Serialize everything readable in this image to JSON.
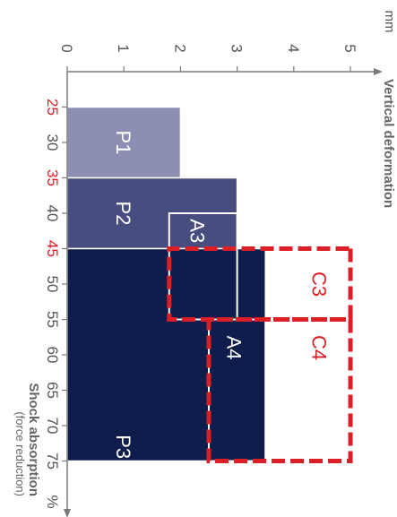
{
  "chart_data": {
    "type": "area",
    "orientation": "rotated-90-clockwise",
    "x_axis": {
      "label": "Shock absorption",
      "sublabel": "(force reduction)",
      "unit": "%",
      "range": [
        20,
        80
      ],
      "ticks": [
        {
          "value": 25,
          "label": "25",
          "highlight": true
        },
        {
          "value": 30,
          "label": "30",
          "highlight": false
        },
        {
          "value": 35,
          "label": "35",
          "highlight": true
        },
        {
          "value": 40,
          "label": "40",
          "highlight": false
        },
        {
          "value": 45,
          "label": "45",
          "highlight": true
        },
        {
          "value": 50,
          "label": "50",
          "highlight": false
        },
        {
          "value": 55,
          "label": "55",
          "highlight": false
        },
        {
          "value": 60,
          "label": "60",
          "highlight": false
        },
        {
          "value": 65,
          "label": "65",
          "highlight": false
        },
        {
          "value": 70,
          "label": "70",
          "highlight": false
        },
        {
          "value": 75,
          "label": "75",
          "highlight": false
        }
      ],
      "end_label": "%"
    },
    "y_axis": {
      "label": "Vertical deformation",
      "unit": "mm",
      "range": [
        0,
        5.3
      ],
      "ticks": [
        {
          "value": 0,
          "label": "0"
        },
        {
          "value": 1,
          "label": "1"
        },
        {
          "value": 2,
          "label": "2"
        },
        {
          "value": 3,
          "label": "3"
        },
        {
          "value": 4,
          "label": "4"
        },
        {
          "value": 5,
          "label": "5"
        }
      ],
      "end_label": "mm"
    },
    "regions": [
      {
        "name": "P1",
        "x": [
          25,
          35
        ],
        "y": [
          0,
          2
        ],
        "fill": "#8c8fb3",
        "stroke": "#ffffff",
        "style": "filled"
      },
      {
        "name": "P2",
        "x": [
          35,
          45
        ],
        "y": [
          0,
          3
        ],
        "fill": "#474d7e",
        "stroke": "#ffffff",
        "style": "filled"
      },
      {
        "name": "P3",
        "x": [
          45,
          75
        ],
        "y": [
          0,
          3.5
        ],
        "fill": "#0e1d4c",
        "stroke": "#ffffff",
        "style": "filled"
      },
      {
        "name": "A3",
        "x": [
          40,
          55
        ],
        "y": [
          1.8,
          3
        ],
        "fill": "none",
        "stroke": "#ffffff",
        "style": "outline"
      },
      {
        "name": "A4",
        "x": [
          55,
          75
        ],
        "y": [
          2.5,
          3.5
        ],
        "fill": "none",
        "stroke": "#ffffff",
        "style": "outline"
      },
      {
        "name": "C3",
        "x": [
          45,
          55
        ],
        "y": [
          1.8,
          5
        ],
        "fill": "none",
        "stroke": "#dc1f26",
        "style": "dashed"
      },
      {
        "name": "C4",
        "x": [
          55,
          75
        ],
        "y": [
          2.5,
          5
        ],
        "fill": "none",
        "stroke": "#dc1f26",
        "style": "dashed"
      }
    ],
    "region_labels": [
      {
        "name": "P1",
        "text": "P1",
        "x": 30,
        "y": 1.0,
        "color": "#ffffff"
      },
      {
        "name": "P2",
        "text": "P2",
        "x": 40,
        "y": 1.0,
        "color": "#ffffff"
      },
      {
        "name": "A3",
        "text": "A3",
        "x": 42.5,
        "y": 2.3,
        "color": "#ffffff"
      },
      {
        "name": "C3",
        "text": "C3",
        "x": 50,
        "y": 4.45,
        "color": "#dc1f26"
      },
      {
        "name": "A4",
        "text": "A4",
        "x": 59,
        "y": 2.95,
        "color": "#ffffff"
      },
      {
        "name": "C4",
        "text": "C4",
        "x": 59,
        "y": 4.45,
        "color": "#dc1f26"
      },
      {
        "name": "P3",
        "text": "P3",
        "x": 73,
        "y": 1.0,
        "color": "#ffffff"
      }
    ],
    "colors": {
      "axis": "#7a7a7a",
      "tick_text": "#555555",
      "highlight_tick": "#dc1f26",
      "title_text": "#666666"
    }
  }
}
